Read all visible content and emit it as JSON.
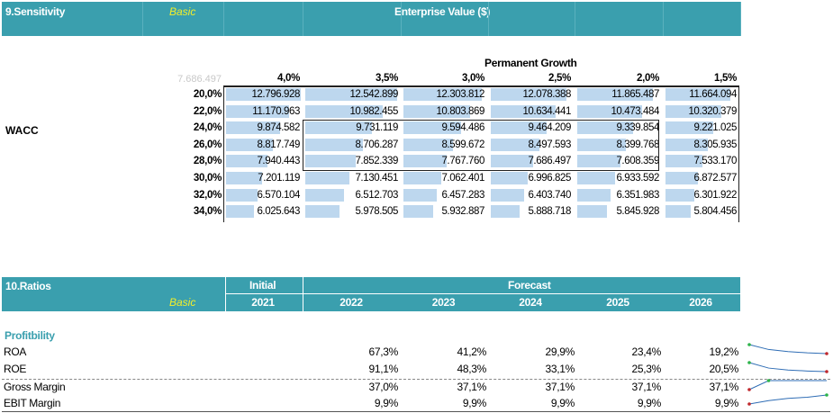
{
  "sensitivity": {
    "title": "9.Sensitivity",
    "basic_label": "Basic",
    "header": "Enterprise Value ($)",
    "corner_value": "7.686.497",
    "growth_label": "Permanent Growth",
    "wacc_label": "WACC",
    "growth_rates": [
      "4,0%",
      "3,5%",
      "3,0%",
      "2,5%",
      "2,0%",
      "1,5%"
    ],
    "rows": [
      {
        "wacc": "20,0%",
        "values": [
          "12.796.928",
          "12.542.899",
          "12.303.812",
          "12.078.388",
          "11.865.487",
          "11.664.094"
        ]
      },
      {
        "wacc": "22,0%",
        "values": [
          "11.170.963",
          "10.982.455",
          "10.803.869",
          "10.634.441",
          "10.473.484",
          "10.320.379"
        ]
      },
      {
        "wacc": "24,0%",
        "values": [
          "9.874.582",
          "9.731.119",
          "9.594.486",
          "9.464.209",
          "9.339.854",
          "9.221.025"
        ]
      },
      {
        "wacc": "26,0%",
        "values": [
          "8.817.749",
          "8.706.287",
          "8.599.672",
          "8.497.593",
          "8.399.768",
          "8.305.935"
        ]
      },
      {
        "wacc": "28,0%",
        "values": [
          "7.940.443",
          "7.852.339",
          "7.767.760",
          "7.686.497",
          "7.608.359",
          "7.533.170"
        ]
      },
      {
        "wacc": "30,0%",
        "values": [
          "7.201.119",
          "7.130.451",
          "7.062.401",
          "6.996.825",
          "6.933.592",
          "6.872.577"
        ]
      },
      {
        "wacc": "32,0%",
        "values": [
          "6.570.104",
          "6.512.703",
          "6.457.283",
          "6.403.740",
          "6.351.983",
          "6.301.922"
        ]
      },
      {
        "wacc": "34,0%",
        "values": [
          "6.025.643",
          "5.978.505",
          "5.932.887",
          "5.888.718",
          "5.845.928",
          "5.804.456"
        ]
      }
    ]
  },
  "ratios": {
    "title": "10.Ratios",
    "basic_label": "Basic",
    "initial_label": "Initial",
    "forecast_label": "Forecast",
    "years": [
      "2021",
      "2022",
      "2023",
      "2024",
      "2025",
      "2026"
    ],
    "section_label": "Profitbility",
    "items": [
      {
        "name": "ROA",
        "values": [
          "67,3%",
          "41,2%",
          "29,9%",
          "23,4%",
          "19,2%"
        ],
        "trend": [
          67.3,
          41.2,
          29.9,
          23.4,
          19.2
        ]
      },
      {
        "name": "ROE",
        "values": [
          "91,1%",
          "48,3%",
          "33,1%",
          "25,3%",
          "20,5%"
        ],
        "trend": [
          91.1,
          48.3,
          33.1,
          25.3,
          20.5
        ]
      },
      {
        "name": "Gross Margin",
        "values": [
          "37,0%",
          "37,1%",
          "37,1%",
          "37,1%",
          "37,1%"
        ],
        "trend": [
          37.0,
          37.1,
          37.1,
          37.1,
          37.1
        ]
      },
      {
        "name": "EBIT Margin",
        "values": [
          "9,9%",
          "9,9%",
          "9,9%",
          "9,9%",
          "9,9%"
        ],
        "trend": [
          9.85,
          9.88,
          9.9,
          9.91,
          9.93
        ]
      }
    ],
    "colors": {
      "band": "#3a9fae",
      "bar": "#bdd7ee",
      "high_marker": "#2db34a",
      "low_marker": "#c0282d",
      "spark": "#2f6db5"
    }
  }
}
